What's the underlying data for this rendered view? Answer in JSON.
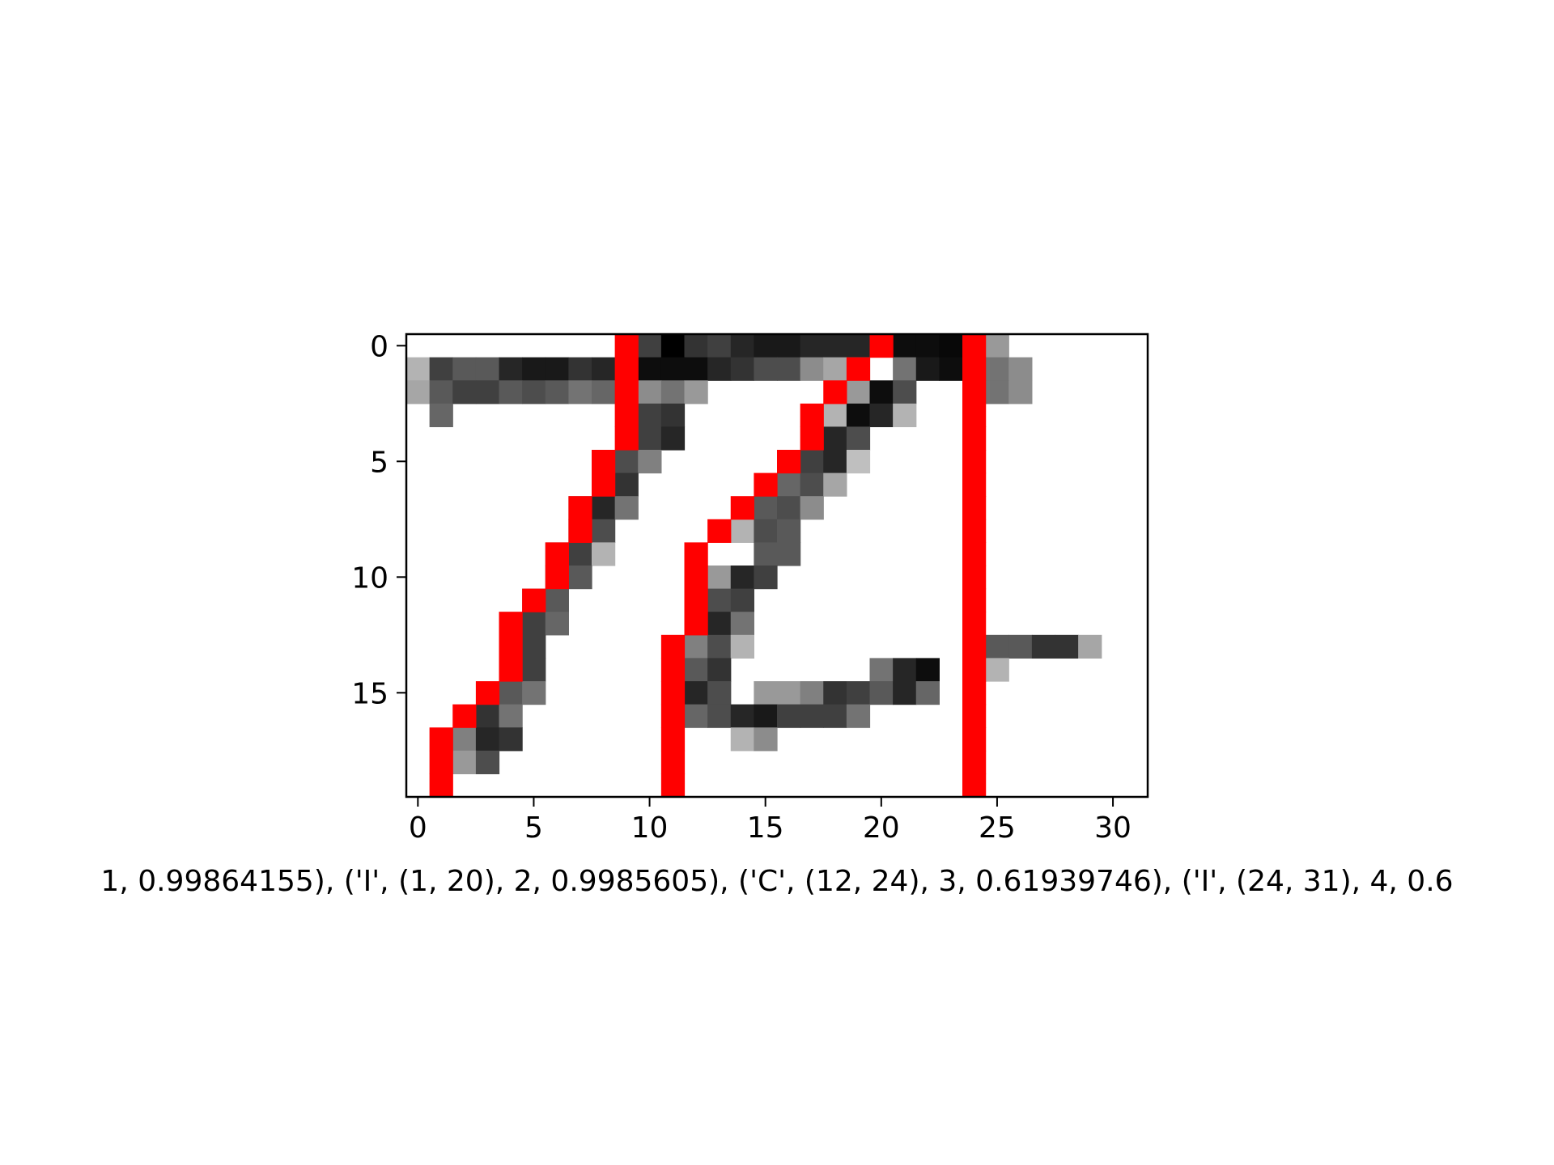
{
  "caption": "1, 0.99864155), ('I', (1, 20), 2, 0.9985605), ('C', (12, 24), 3, 0.61939746), ('I', (24, 31), 4, 0.6",
  "chart_data": {
    "type": "heatmap",
    "colormap": "gray_r",
    "overlay_color": "#ff0000",
    "xlim": [
      -0.5,
      31.5
    ],
    "ylim": [
      19.5,
      -0.5
    ],
    "xticks": [
      0,
      5,
      10,
      15,
      20,
      25,
      30
    ],
    "yticks": [
      0,
      5,
      10,
      15
    ],
    "grid": false,
    "pixels": [
      [
        0,
        0,
        0,
        0,
        0,
        0,
        0,
        0,
        0,
        0,
        0.75,
        1.0,
        0.8,
        0.75,
        0.85,
        0.9,
        0.9,
        0.85,
        0.85,
        0.85,
        0,
        0.95,
        0.95,
        0.97,
        0,
        0.4,
        0,
        0,
        0,
        0,
        0,
        0
      ],
      [
        0.3,
        0.75,
        0.65,
        0.65,
        0.85,
        0.9,
        0.9,
        0.8,
        0.85,
        0,
        0.95,
        0.95,
        0.95,
        0.85,
        0.8,
        0.7,
        0.7,
        0.45,
        0.35,
        0.3,
        0,
        0.55,
        0.9,
        0.95,
        0,
        0.55,
        0.45,
        0,
        0,
        0,
        0,
        0
      ],
      [
        0.35,
        0.65,
        0.75,
        0.75,
        0.65,
        0.7,
        0.65,
        0.55,
        0.6,
        0,
        0.45,
        0.55,
        0.4,
        0,
        0,
        0,
        0,
        0,
        0,
        0.4,
        0.95,
        0.7,
        0,
        0,
        0,
        0.55,
        0.45,
        0,
        0,
        0,
        0,
        0
      ],
      [
        0,
        0.6,
        0,
        0,
        0,
        0,
        0,
        0,
        0,
        0,
        0.75,
        0.8,
        0,
        0,
        0,
        0,
        0,
        0,
        0.3,
        0.95,
        0.85,
        0.3,
        0,
        0,
        0,
        0,
        0,
        0,
        0,
        0,
        0,
        0
      ],
      [
        0,
        0,
        0,
        0,
        0,
        0,
        0,
        0,
        0,
        0,
        0.75,
        0.85,
        0,
        0,
        0,
        0,
        0,
        0,
        0.85,
        0.7,
        0,
        0,
        0,
        0,
        0,
        0,
        0,
        0,
        0,
        0,
        0,
        0
      ],
      [
        0,
        0,
        0,
        0,
        0,
        0,
        0,
        0,
        0.45,
        0.7,
        0.5,
        0,
        0,
        0,
        0,
        0,
        0,
        0.75,
        0.85,
        0.25,
        0,
        0,
        0,
        0,
        0,
        0,
        0,
        0,
        0,
        0,
        0,
        0
      ],
      [
        0,
        0,
        0,
        0,
        0,
        0,
        0,
        0,
        0.8,
        0.8,
        0,
        0,
        0,
        0,
        0,
        0,
        0.6,
        0.7,
        0.35,
        0,
        0,
        0,
        0,
        0,
        0,
        0,
        0,
        0,
        0,
        0,
        0,
        0
      ],
      [
        0,
        0,
        0,
        0,
        0,
        0,
        0,
        0.55,
        0.85,
        0.55,
        0,
        0,
        0,
        0,
        0,
        0.65,
        0.7,
        0.45,
        0,
        0,
        0,
        0,
        0,
        0,
        0,
        0,
        0,
        0,
        0,
        0,
        0,
        0
      ],
      [
        0,
        0,
        0,
        0,
        0,
        0,
        0,
        0.7,
        0.7,
        0,
        0,
        0,
        0,
        0,
        0.3,
        0.7,
        0.65,
        0,
        0,
        0,
        0,
        0,
        0,
        0,
        0,
        0,
        0,
        0,
        0,
        0,
        0,
        0
      ],
      [
        0,
        0,
        0,
        0,
        0,
        0,
        0.55,
        0.75,
        0.3,
        0,
        0,
        0,
        0,
        0,
        0,
        0.65,
        0.65,
        0,
        0,
        0,
        0,
        0,
        0,
        0,
        0,
        0,
        0,
        0,
        0,
        0,
        0,
        0
      ],
      [
        0,
        0,
        0,
        0,
        0,
        0,
        0.65,
        0.65,
        0,
        0,
        0,
        0,
        0,
        0.4,
        0.85,
        0.75,
        0,
        0,
        0,
        0,
        0,
        0,
        0,
        0,
        0,
        0,
        0,
        0,
        0,
        0,
        0,
        0
      ],
      [
        0,
        0,
        0,
        0,
        0,
        0.65,
        0.65,
        0,
        0,
        0,
        0,
        0,
        0,
        0.7,
        0.75,
        0,
        0,
        0,
        0,
        0,
        0,
        0,
        0,
        0,
        0,
        0,
        0,
        0,
        0,
        0,
        0,
        0
      ],
      [
        0,
        0,
        0,
        0,
        0.3,
        0.75,
        0.6,
        0,
        0,
        0,
        0,
        0,
        0,
        0.85,
        0.55,
        0,
        0,
        0,
        0,
        0,
        0,
        0,
        0,
        0,
        0,
        0,
        0,
        0,
        0,
        0,
        0,
        0
      ],
      [
        0,
        0,
        0,
        0,
        0.6,
        0.75,
        0,
        0,
        0,
        0,
        0,
        0,
        0.5,
        0.7,
        0.3,
        0,
        0,
        0,
        0,
        0,
        0,
        0,
        0,
        0,
        0.4,
        0.65,
        0.65,
        0.8,
        0.8,
        0.35,
        0,
        0
      ],
      [
        0,
        0,
        0,
        0,
        0.8,
        0.75,
        0,
        0,
        0,
        0,
        0,
        0,
        0.65,
        0.8,
        0,
        0,
        0,
        0,
        0,
        0,
        0.55,
        0.85,
        0.95,
        0,
        0.65,
        0.3,
        0,
        0,
        0,
        0,
        0,
        0
      ],
      [
        0,
        0,
        0,
        0,
        0.65,
        0.55,
        0,
        0,
        0,
        0,
        0,
        0,
        0.85,
        0.7,
        0,
        0.4,
        0.4,
        0.5,
        0.8,
        0.75,
        0.65,
        0.85,
        0.6,
        0,
        0,
        0,
        0,
        0,
        0,
        0,
        0,
        0
      ],
      [
        0,
        0,
        0,
        0.8,
        0.55,
        0,
        0,
        0,
        0,
        0,
        0,
        0,
        0.6,
        0.7,
        0.85,
        0.9,
        0.75,
        0.75,
        0.75,
        0.55,
        0,
        0,
        0,
        0,
        0,
        0,
        0,
        0,
        0,
        0,
        0,
        0
      ],
      [
        0,
        0,
        0.5,
        0.85,
        0.8,
        0,
        0,
        0,
        0,
        0,
        0,
        0,
        0,
        0,
        0.3,
        0.45,
        0,
        0,
        0,
        0,
        0,
        0,
        0,
        0,
        0,
        0,
        0,
        0,
        0,
        0,
        0,
        0
      ],
      [
        0,
        0,
        0.4,
        0.7,
        0,
        0,
        0,
        0,
        0,
        0,
        0,
        0,
        0,
        0,
        0,
        0,
        0,
        0,
        0,
        0,
        0,
        0,
        0,
        0,
        0,
        0,
        0,
        0,
        0,
        0,
        0,
        0
      ],
      [
        0,
        0,
        0,
        0,
        0,
        0,
        0,
        0,
        0,
        0,
        0,
        0,
        0,
        0,
        0,
        0,
        0,
        0,
        0,
        0,
        0,
        0,
        0,
        0,
        0,
        0,
        0,
        0,
        0,
        0,
        0,
        0
      ]
    ],
    "red_cells": [
      [
        0,
        9
      ],
      [
        1,
        9
      ],
      [
        2,
        9
      ],
      [
        3,
        9
      ],
      [
        4,
        9
      ],
      [
        5,
        8
      ],
      [
        6,
        8
      ],
      [
        7,
        7
      ],
      [
        8,
        7
      ],
      [
        9,
        6
      ],
      [
        10,
        6
      ],
      [
        11,
        5
      ],
      [
        12,
        4
      ],
      [
        13,
        4
      ],
      [
        14,
        4
      ],
      [
        15,
        3
      ],
      [
        16,
        2
      ],
      [
        17,
        1
      ],
      [
        18,
        1
      ],
      [
        19,
        1
      ],
      [
        0,
        20
      ],
      [
        1,
        19
      ],
      [
        2,
        18
      ],
      [
        3,
        17
      ],
      [
        4,
        17
      ],
      [
        5,
        16
      ],
      [
        6,
        15
      ],
      [
        7,
        14
      ],
      [
        8,
        13
      ],
      [
        9,
        12
      ],
      [
        10,
        12
      ],
      [
        11,
        12
      ],
      [
        12,
        12
      ],
      [
        13,
        11
      ],
      [
        14,
        11
      ],
      [
        15,
        11
      ],
      [
        16,
        11
      ],
      [
        17,
        11
      ],
      [
        18,
        11
      ],
      [
        19,
        11
      ],
      [
        0,
        24
      ],
      [
        1,
        24
      ],
      [
        2,
        24
      ],
      [
        3,
        24
      ],
      [
        4,
        24
      ],
      [
        5,
        24
      ],
      [
        6,
        24
      ],
      [
        7,
        24
      ],
      [
        8,
        24
      ],
      [
        9,
        24
      ],
      [
        10,
        24
      ],
      [
        11,
        24
      ],
      [
        12,
        24
      ],
      [
        13,
        24
      ],
      [
        14,
        24
      ],
      [
        15,
        24
      ],
      [
        16,
        24
      ],
      [
        17,
        24
      ],
      [
        18,
        24
      ],
      [
        19,
        24
      ]
    ]
  }
}
